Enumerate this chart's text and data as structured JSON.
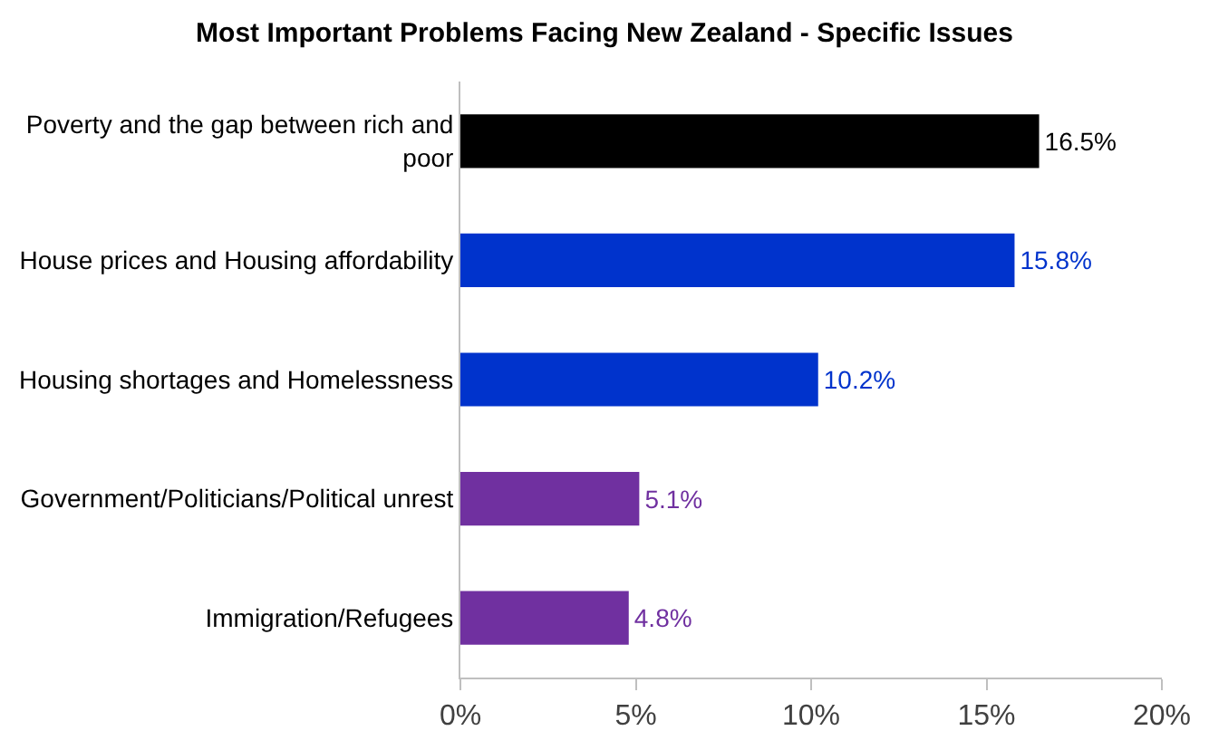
{
  "chart_data": {
    "type": "bar",
    "orientation": "horizontal",
    "title": "Most Important Problems Facing New Zealand - Specific Issues",
    "categories": [
      "Poverty and the gap between rich and poor",
      "House prices and Housing affordability",
      "Housing shortages and Homelessness",
      "Government/Politicians/Political unrest",
      "Immigration/Refugees"
    ],
    "values": [
      16.5,
      15.8,
      10.2,
      5.1,
      4.8
    ],
    "colors": [
      "#000000",
      "#0033cc",
      "#0033cc",
      "#7030a0",
      "#7030a0"
    ],
    "value_labels": [
      "16.5%",
      "15.8%",
      "10.2%",
      "5.1%",
      "4.8%"
    ],
    "xlim": [
      0,
      20
    ],
    "xticks": [
      {
        "value": 0,
        "label": "0%"
      },
      {
        "value": 5,
        "label": "5%"
      },
      {
        "value": 10,
        "label": "10%"
      },
      {
        "value": 15,
        "label": "15%"
      },
      {
        "value": 20,
        "label": "20%"
      }
    ],
    "grid": false,
    "legend": false
  }
}
